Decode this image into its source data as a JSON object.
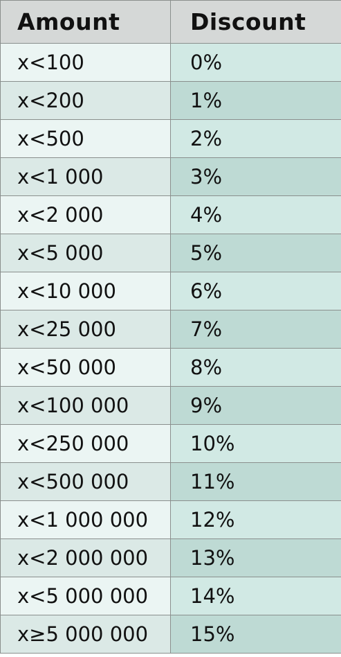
{
  "table": {
    "headers": [
      "Amount",
      "Discount"
    ],
    "rows": [
      [
        "x<100",
        "0%"
      ],
      [
        "x<200",
        "1%"
      ],
      [
        "x<500",
        "2%"
      ],
      [
        "x<1 000",
        "3%"
      ],
      [
        "x<2 000",
        "4%"
      ],
      [
        "x<5 000",
        "5%"
      ],
      [
        "x<10 000",
        "6%"
      ],
      [
        "x<25 000",
        "7%"
      ],
      [
        "x<50 000",
        "8%"
      ],
      [
        "x<100 000",
        "9%"
      ],
      [
        "x<250 000",
        "10%"
      ],
      [
        "x<500 000",
        "11%"
      ],
      [
        "x<1 000 000",
        "12%"
      ],
      [
        "x<2 000 000",
        "13%"
      ],
      [
        "x<5 000 000",
        "14%"
      ],
      [
        "x≥5 000 000",
        "15%"
      ]
    ]
  },
  "colors": {
    "header_bg": "#d5d8d7",
    "amount_light": "#ebf5f3",
    "amount_dark": "#dbe9e6",
    "discount_light": "#d1e9e4",
    "discount_dark": "#bedad4",
    "border": "#8a8f8d"
  }
}
